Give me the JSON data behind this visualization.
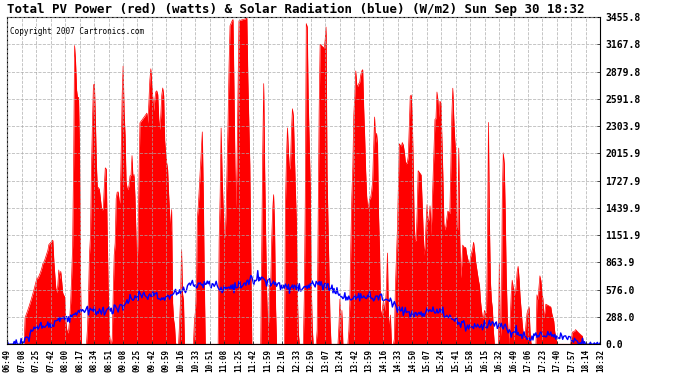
{
  "title": "Total PV Power (red) (watts) & Solar Radiation (blue) (W/m2) Sun Sep 30 18:32",
  "copyright": "Copyright 2007 Cartronics.com",
  "background_color": "#ffffff",
  "plot_bg_color": "#ffffff",
  "grid_color": "#aaaaaa",
  "title_color": "#000000",
  "red_color": "#ff0000",
  "blue_color": "#0000ff",
  "yticks": [
    0.0,
    288.0,
    576.0,
    863.9,
    1151.9,
    1439.9,
    1727.9,
    2015.9,
    2303.9,
    2591.8,
    2879.8,
    3167.8,
    3455.8
  ],
  "xlabels": [
    "06:49",
    "07:08",
    "07:25",
    "07:42",
    "08:00",
    "08:17",
    "08:34",
    "08:51",
    "09:08",
    "09:25",
    "09:42",
    "09:59",
    "10:16",
    "10:33",
    "10:51",
    "11:08",
    "11:25",
    "11:42",
    "11:59",
    "12:16",
    "12:33",
    "12:50",
    "13:07",
    "13:24",
    "13:42",
    "13:59",
    "14:16",
    "14:33",
    "14:50",
    "15:07",
    "15:24",
    "15:41",
    "15:58",
    "16:15",
    "16:32",
    "16:49",
    "17:06",
    "17:23",
    "17:40",
    "17:57",
    "18:14",
    "18:32"
  ],
  "ylim": [
    0,
    3455.8
  ],
  "figsize": [
    6.9,
    3.75
  ],
  "dpi": 100
}
